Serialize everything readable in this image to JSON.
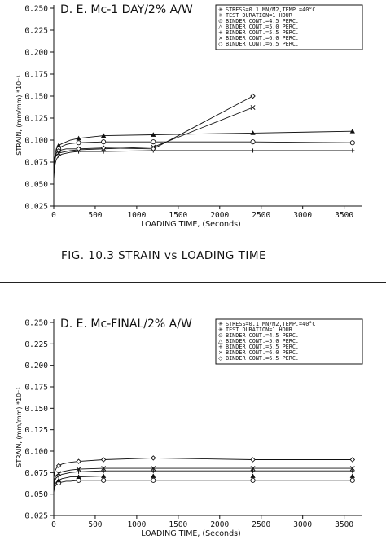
{
  "caption": "FIG. 10.3   STRAIN vs LOADING TIME",
  "chart_data": [
    {
      "type": "line",
      "title": "D. E. Mc-1 DAY/2% A/W",
      "xlabel": "LOADING TIME, (Seconds)",
      "ylabel": "STRAIN, (mm/mm) *10⁻¹",
      "xlim": [
        0,
        3700
      ],
      "ylim": [
        0.025,
        0.25
      ],
      "xticks": [
        0,
        500,
        1000,
        1500,
        2000,
        2500,
        3000,
        3500
      ],
      "yticks": [
        0.025,
        0.05,
        0.075,
        0.1,
        0.125,
        0.15,
        0.175,
        0.2,
        0.225,
        0.25
      ],
      "xtick_labels": [
        "0",
        "500",
        "1000",
        "1500",
        "2000",
        "2500",
        "3000",
        "3500"
      ],
      "ytick_labels": [
        "0.025",
        "0.050",
        "0.075",
        "0.100",
        "0.125",
        "0.150",
        "0.175",
        "0.200",
        "0.225",
        "0.250"
      ],
      "legend_lines": [
        "STRESS=0.1 MN/M2,TEMP.=40°C",
        "TEST DURATION=1 HOUR",
        "BINDER CONT.=4.5 PERC.",
        "BINDER CONT.=5.0 PERC.",
        "BINDER CONT.=5.5 PERC.",
        "BINDER CONT.=6.0 PERC.",
        "BINDER CONT.=6.5 PERC."
      ],
      "legend_symbols": [
        "✳",
        "✳",
        "⊙",
        "△",
        "+",
        "×",
        "◇"
      ],
      "series": [
        {
          "name": "BINDER CONT.=4.5 PERC.",
          "marker": "o",
          "x": [
            0,
            10,
            30,
            60,
            100,
            150,
            200,
            300,
            600,
            1200,
            2400,
            3600
          ],
          "y": [
            0.06,
            0.075,
            0.085,
            0.09,
            0.093,
            0.095,
            0.096,
            0.097,
            0.098,
            0.098,
            0.098,
            0.097
          ]
        },
        {
          "name": "BINDER CONT.=5.0 PERC.",
          "marker": "^",
          "x": [
            0,
            10,
            30,
            60,
            100,
            150,
            200,
            300,
            600,
            1200,
            2400,
            3600
          ],
          "y": [
            0.065,
            0.08,
            0.09,
            0.094,
            0.096,
            0.098,
            0.1,
            0.102,
            0.105,
            0.106,
            0.108,
            0.11
          ]
        },
        {
          "name": "BINDER CONT.=5.5 PERC.",
          "marker": "+",
          "x": [
            0,
            10,
            30,
            60,
            100,
            150,
            200,
            300,
            600,
            1200,
            2400,
            3600
          ],
          "y": [
            0.055,
            0.07,
            0.078,
            0.082,
            0.084,
            0.085,
            0.086,
            0.087,
            0.087,
            0.088,
            0.088,
            0.088
          ]
        },
        {
          "name": "BINDER CONT.=6.0 PERC.",
          "marker": "x",
          "x": [
            0,
            10,
            30,
            60,
            100,
            150,
            200,
            300,
            600,
            1200,
            2400
          ],
          "y": [
            0.063,
            0.078,
            0.083,
            0.085,
            0.086,
            0.087,
            0.088,
            0.089,
            0.09,
            0.092,
            0.137
          ]
        },
        {
          "name": "BINDER CONT.=6.5 PERC.",
          "marker": "d",
          "x": [
            0,
            10,
            30,
            60,
            100,
            150,
            200,
            300,
            600,
            1200,
            2400
          ],
          "y": [
            0.068,
            0.08,
            0.085,
            0.088,
            0.089,
            0.09,
            0.09,
            0.09,
            0.091,
            0.09,
            0.15
          ]
        }
      ]
    },
    {
      "type": "line",
      "title": "D. E. Mc-FINAL/2% A/W",
      "xlabel": "LOADING TIME, (Seconds)",
      "ylabel": "STRAIN, (mm/mm) *10⁻¹",
      "xlim": [
        0,
        3700
      ],
      "ylim": [
        0.025,
        0.25
      ],
      "xticks": [
        0,
        500,
        1000,
        1500,
        2000,
        2500,
        3000,
        3500
      ],
      "yticks": [
        0.025,
        0.05,
        0.075,
        0.1,
        0.125,
        0.15,
        0.175,
        0.2,
        0.225,
        0.25
      ],
      "xtick_labels": [
        "0",
        "500",
        "1000",
        "1500",
        "2000",
        "2500",
        "3000",
        "3500"
      ],
      "ytick_labels": [
        "0.025",
        "0.050",
        "0.075",
        "0.100",
        "0.125",
        "0.150",
        "0.175",
        "0.200",
        "0.225",
        "0.250"
      ],
      "legend_lines": [
        "STRESS=0.1 MN/M2,TEMP.=40°C",
        "TEST DURATION=1 HOUR",
        "BINDER CONT.=4.5 PERC.",
        "BINDER CONT.=5.0 PERC.",
        "BINDER CONT.=5.5 PERC.",
        "BINDER CONT.=6.0 PERC.",
        "BINDER CONT.=6.5 PERC."
      ],
      "legend_symbols": [
        "✳",
        "✳",
        "⊙",
        "△",
        "+",
        "×",
        "◇"
      ],
      "series": [
        {
          "name": "BINDER CONT.=4.5 PERC.",
          "marker": "o",
          "x": [
            0,
            10,
            30,
            60,
            100,
            150,
            200,
            300,
            600,
            1200,
            2400,
            3600
          ],
          "y": [
            0.052,
            0.058,
            0.061,
            0.063,
            0.064,
            0.065,
            0.065,
            0.066,
            0.066,
            0.066,
            0.066,
            0.066
          ]
        },
        {
          "name": "BINDER CONT.=5.0 PERC.",
          "marker": "^",
          "x": [
            0,
            10,
            30,
            60,
            100,
            150,
            200,
            300,
            600,
            1200,
            2400,
            3600
          ],
          "y": [
            0.054,
            0.06,
            0.064,
            0.066,
            0.068,
            0.069,
            0.07,
            0.07,
            0.071,
            0.071,
            0.071,
            0.071
          ]
        },
        {
          "name": "BINDER CONT.=5.5 PERC.",
          "marker": "+",
          "x": [
            0,
            10,
            30,
            60,
            100,
            150,
            200,
            300,
            600,
            1200,
            2400,
            3600
          ],
          "y": [
            0.058,
            0.065,
            0.069,
            0.071,
            0.073,
            0.074,
            0.075,
            0.076,
            0.077,
            0.077,
            0.077,
            0.077
          ]
        },
        {
          "name": "BINDER CONT.=6.0 PERC.",
          "marker": "x",
          "x": [
            0,
            10,
            30,
            60,
            100,
            150,
            200,
            300,
            600,
            1200,
            2400,
            3600
          ],
          "y": [
            0.06,
            0.068,
            0.072,
            0.074,
            0.076,
            0.077,
            0.078,
            0.079,
            0.08,
            0.08,
            0.08,
            0.08
          ]
        },
        {
          "name": "BINDER CONT.=6.5 PERC.",
          "marker": "d",
          "x": [
            0,
            10,
            30,
            60,
            100,
            150,
            200,
            300,
            600,
            1200,
            2400,
            3600
          ],
          "y": [
            0.068,
            0.076,
            0.08,
            0.083,
            0.085,
            0.086,
            0.087,
            0.088,
            0.09,
            0.092,
            0.09,
            0.09
          ]
        }
      ]
    }
  ]
}
